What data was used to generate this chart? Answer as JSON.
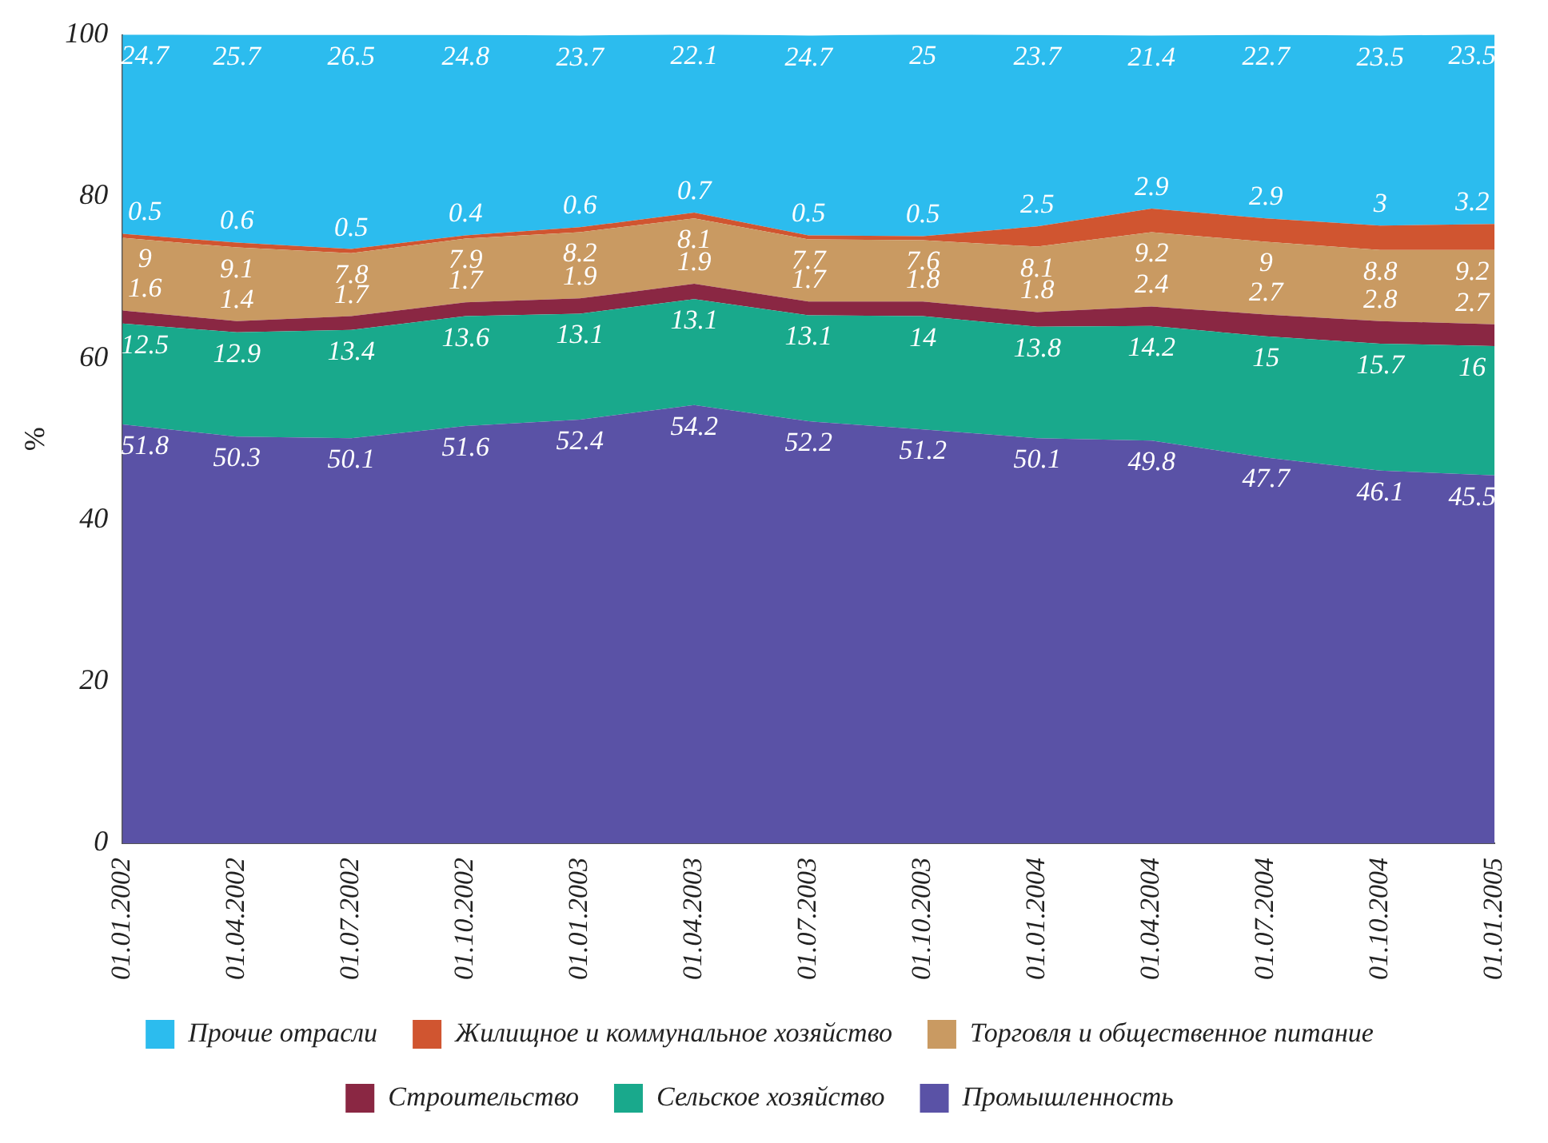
{
  "chart_data": {
    "type": "area",
    "stacked": true,
    "ylabel": "%",
    "categories": [
      "01.01.2002",
      "01.04.2002",
      "01.07.2002",
      "01.10.2002",
      "01.01.2003",
      "01.04.2003",
      "01.07.2003",
      "01.10.2003",
      "01.01.2004",
      "01.04.2004",
      "01.07.2004",
      "01.10.2004",
      "01.01.2005"
    ],
    "series": [
      {
        "name": "Промышленность",
        "color": "#5a52a6",
        "values": [
          51.8,
          50.3,
          50.1,
          51.6,
          52.4,
          54.2,
          52.2,
          51.2,
          50.1,
          49.8,
          47.7,
          46.1,
          45.5
        ]
      },
      {
        "name": "Сельское хозяйство",
        "color": "#19a98c",
        "values": [
          12.5,
          12.9,
          13.4,
          13.6,
          13.1,
          13.1,
          13.1,
          14.0,
          13.8,
          14.2,
          15.0,
          15.7,
          16.0
        ]
      },
      {
        "name": "Строительство",
        "color": "#8a2743",
        "values": [
          1.6,
          1.4,
          1.7,
          1.7,
          1.9,
          1.9,
          1.7,
          1.8,
          1.8,
          2.4,
          2.7,
          2.8,
          2.7
        ]
      },
      {
        "name": "Торговля и общественное питание",
        "color": "#c99a62",
        "values": [
          9.0,
          9.1,
          7.8,
          7.9,
          8.2,
          8.1,
          7.7,
          7.6,
          8.1,
          9.2,
          9.0,
          8.8,
          9.2
        ]
      },
      {
        "name": "Жилищное и коммунальное хозяйство",
        "color": "#d05530",
        "values": [
          0.5,
          0.6,
          0.5,
          0.4,
          0.6,
          0.7,
          0.5,
          0.5,
          2.5,
          2.9,
          2.9,
          3.0,
          3.2
        ]
      },
      {
        "name": "Прочие отрасли",
        "color": "#2cbcee",
        "values": [
          24.7,
          25.7,
          26.5,
          24.8,
          23.7,
          22.1,
          24.7,
          25.0,
          23.7,
          21.4,
          22.7,
          23.5,
          23.5
        ]
      }
    ],
    "ylim": [
      0,
      100
    ],
    "yticks": [
      0,
      20,
      40,
      60,
      80,
      100
    ],
    "grid": false,
    "legend": "bottom",
    "data_labels": true
  }
}
